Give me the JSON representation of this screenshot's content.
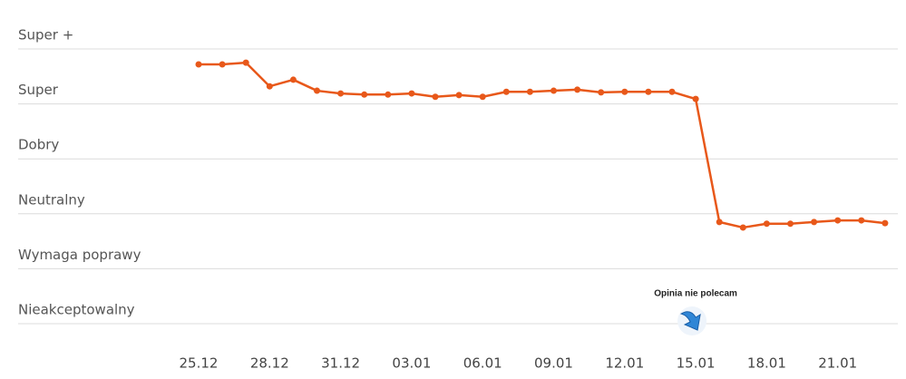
{
  "chart_data": {
    "type": "line",
    "categories": [
      "25.12",
      null,
      null,
      "28.12",
      null,
      null,
      "31.12",
      null,
      null,
      "03.01",
      null,
      null,
      "06.01",
      null,
      null,
      "09.01",
      null,
      null,
      "12.01",
      null,
      null,
      "15.01",
      null,
      null,
      "18.01",
      null,
      null,
      "21.01",
      null,
      null
    ],
    "series": [
      {
        "color": "#e8581a",
        "values": [
          4.72,
          4.72,
          4.75,
          4.32,
          4.44,
          4.24,
          4.19,
          4.17,
          4.17,
          4.19,
          4.13,
          4.16,
          4.13,
          4.22,
          4.22,
          4.24,
          4.26,
          4.21,
          4.22,
          4.22,
          4.22,
          4.09,
          1.85,
          1.75,
          1.82,
          1.82,
          1.85,
          1.88,
          1.88,
          1.83
        ]
      }
    ],
    "ylim": [
      0,
      5
    ],
    "yticks": [
      {
        "value": 0,
        "label": "Nieakceptowalny"
      },
      {
        "value": 1,
        "label": "Wymaga poprawy"
      },
      {
        "value": 2,
        "label": "Neutralny"
      },
      {
        "value": 3,
        "label": "Dobry"
      },
      {
        "value": 4,
        "label": "Super"
      },
      {
        "value": 5,
        "label": "Super +"
      }
    ],
    "grid": true,
    "annotation": {
      "text": "Opinia nie polecam",
      "index": 21
    }
  }
}
